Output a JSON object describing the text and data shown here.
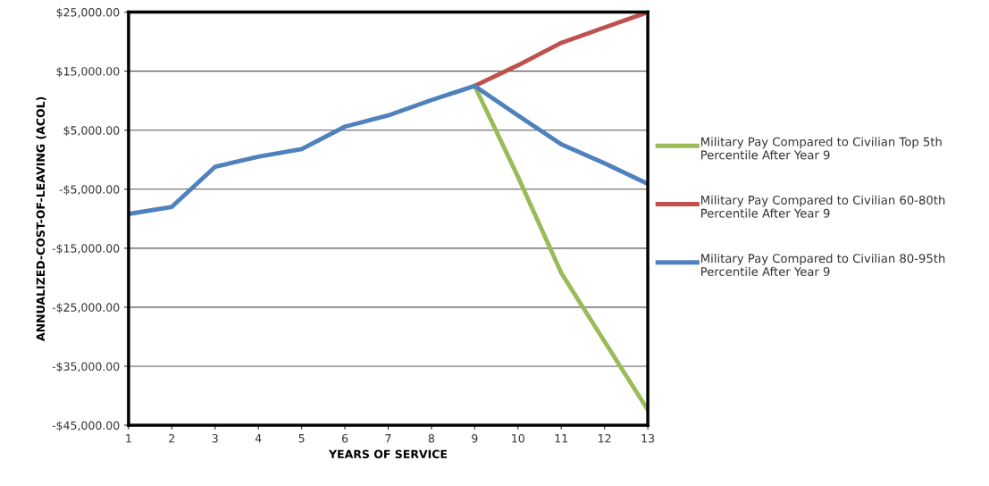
{
  "chart_data": {
    "type": "line",
    "xlabel": "YEARS OF SERVICE",
    "ylabel": "ANNUALIZED-COST-OF-LEAVING (ACOL)",
    "xlim": [
      1,
      13
    ],
    "xticks": [
      1,
      2,
      3,
      4,
      5,
      6,
      7,
      8,
      9,
      10,
      11,
      12,
      13
    ],
    "ylim": [
      -45000,
      25000
    ],
    "yticks": [
      {
        "value": -45000,
        "label": "-$45,000.00"
      },
      {
        "value": -35000,
        "label": "-$35,000.00"
      },
      {
        "value": -25000,
        "label": "-$25,000.00"
      },
      {
        "value": -15000,
        "label": "-$15,000.00"
      },
      {
        "value": -5000,
        "label": "-$5,000.00"
      },
      {
        "value": 5000,
        "label": "$5,000.00"
      },
      {
        "value": 15000,
        "label": "$15,000.00"
      },
      {
        "value": 25000,
        "label": "$25,000.00"
      }
    ],
    "grid": "y",
    "legend": "right",
    "marker": "none",
    "line_style": "solid",
    "series": [
      {
        "name": "Military Pay Compared to Civilian Top 5th Percentile After Year 9",
        "color": "#9bbb59",
        "x": [
          9,
          10,
          11,
          12,
          13
        ],
        "values": [
          12500,
          -2900,
          -19200,
          -30800,
          -42400
        ]
      },
      {
        "name": "Military Pay Compared to Civilian 60-80th Percentile After Year 9",
        "color": "#c0504d",
        "x": [
          9,
          10,
          11,
          12,
          13
        ],
        "values": [
          12500,
          16000,
          19800,
          22400,
          25000
        ]
      },
      {
        "name": "Military Pay Compared to Civilian 80-95th Percentile After Year 9",
        "color": "#4f81bd",
        "x": [
          1,
          2,
          3,
          4,
          5,
          6,
          7,
          8,
          9,
          10,
          11,
          12,
          13
        ],
        "values": [
          -9200,
          -8000,
          -1200,
          500,
          1800,
          5600,
          7500,
          10100,
          12500,
          7500,
          2600,
          -600,
          -4100
        ]
      }
    ]
  }
}
